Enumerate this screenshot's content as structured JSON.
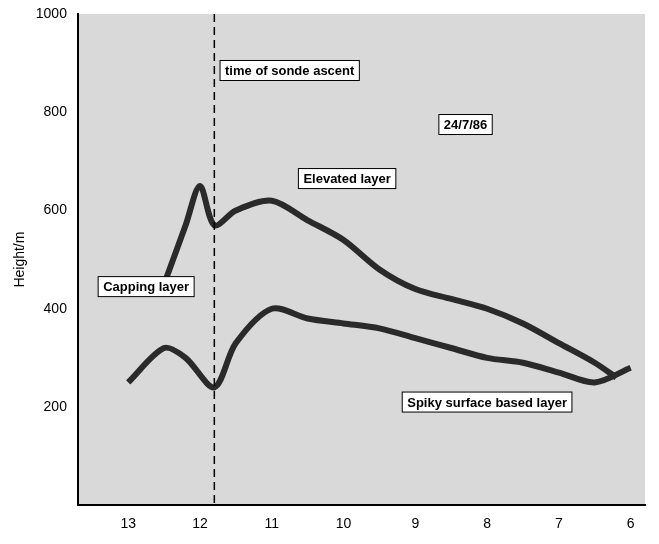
{
  "chart_data": {
    "type": "line",
    "y_label": "Height/m",
    "xlim": [
      13.7,
      5.8
    ],
    "xticks": [
      13,
      12,
      11,
      10,
      9,
      8,
      7,
      6
    ],
    "ylim": [
      0,
      1000
    ],
    "yticks": [
      200,
      400,
      600,
      800,
      1000
    ],
    "grid": false,
    "series": [
      {
        "name": "Elevated layer",
        "color": "#2a2a2a",
        "x": [
          12.5,
          12.2,
          12.0,
          11.8,
          11.5,
          11.0,
          10.5,
          10.0,
          9.5,
          9.0,
          8.5,
          8.0,
          7.5,
          7.0,
          6.5,
          6.2
        ],
        "values": [
          450,
          570,
          650,
          570,
          600,
          620,
          580,
          540,
          480,
          440,
          420,
          400,
          370,
          330,
          290,
          260
        ]
      },
      {
        "name": "Capping layer",
        "color": "#2a2a2a",
        "x": [
          13.0,
          12.5,
          12.2,
          11.8,
          11.5,
          11.0,
          10.5,
          10.0,
          9.5,
          9.0,
          8.5,
          8.0,
          7.5,
          7.0,
          6.5,
          6.0
        ],
        "values": [
          250,
          320,
          300,
          240,
          330,
          400,
          380,
          370,
          360,
          340,
          320,
          300,
          290,
          270,
          250,
          280
        ]
      }
    ],
    "sonde_ascent": {
      "x": 11.8,
      "label": "time of sonde ascent"
    },
    "annotations": [
      {
        "text": "time of sonde ascent",
        "x": 10.75,
        "y": 885
      },
      {
        "text": "Elevated layer",
        "x": 9.95,
        "y": 665
      },
      {
        "text": "Capping layer",
        "x": 12.75,
        "y": 445
      },
      {
        "text": "Spiky surface based layer",
        "x": 8.0,
        "y": 210
      },
      {
        "text": "24/7/86",
        "x": 8.3,
        "y": 775
      }
    ],
    "legend": false
  }
}
